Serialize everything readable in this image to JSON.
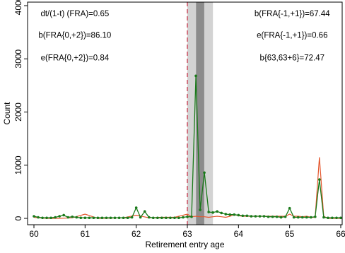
{
  "chart_data": {
    "type": "line",
    "xlabel": "Retirement entry age",
    "ylabel": "Count",
    "xlim": [
      60,
      66
    ],
    "ylim": [
      -100,
      4000
    ],
    "xticks": [
      60,
      61,
      62,
      63,
      64,
      65,
      66
    ],
    "yticks": [
      0,
      1000,
      2000,
      3000,
      4000
    ],
    "grid": false,
    "reference_line": {
      "x": 63,
      "color": "#c8384e",
      "style": "dashed"
    },
    "shaded_bands": [
      {
        "x0": 63.0,
        "x1": 63.5,
        "color": "#d3d3d3"
      },
      {
        "x0": 63.17,
        "x1": 63.33,
        "color": "#8c8c8c"
      }
    ],
    "annotations": [
      {
        "text": "dt/(1-t) (FRA)=0.65",
        "x": 60.8,
        "y": 3840
      },
      {
        "text": "b(FRA{0,+2})=86.10",
        "x": 60.8,
        "y": 3435
      },
      {
        "text": "e(FRA{0,+2})=0.84",
        "x": 60.8,
        "y": 3010
      },
      {
        "text": "b(FRA{-1,+1})=67.44",
        "x": 65.05,
        "y": 3840
      },
      {
        "text": "e(FRA{-1,+1})=0.66",
        "x": 65.05,
        "y": 3435
      },
      {
        "text": "b{63,63+6}=72.47",
        "x": 65.05,
        "y": 3010
      }
    ],
    "series": [
      {
        "color": "#e4572e",
        "x": [
          60.0,
          60.25,
          60.5,
          60.75,
          61.0,
          61.25,
          61.5,
          61.75,
          62.0,
          62.25,
          62.5,
          62.75,
          63.0,
          63.083,
          63.167,
          63.25,
          63.333,
          63.417,
          63.5,
          63.583,
          63.667,
          63.75,
          63.833,
          63.917,
          64.0,
          64.083,
          64.167,
          64.25,
          64.333,
          64.417,
          64.5,
          64.583,
          64.667,
          64.75,
          64.833,
          64.917,
          65.0,
          65.083,
          65.167,
          65.25,
          65.333,
          65.417,
          65.5,
          65.583,
          65.667,
          65.75,
          65.833,
          65.917,
          66.0
        ],
        "values": [
          20,
          0,
          0,
          10,
          80,
          0,
          5,
          10,
          60,
          10,
          20,
          20,
          80,
          30,
          40,
          30,
          30,
          20,
          30,
          40,
          30,
          20,
          40,
          70,
          50,
          40,
          40,
          40,
          40,
          40,
          40,
          40,
          40,
          40,
          40,
          40,
          80,
          40,
          40,
          30,
          40,
          20,
          20,
          1150,
          40,
          0,
          0,
          0,
          0
        ]
      },
      {
        "color": "#1a7a1a",
        "x": [
          60.0,
          60.083,
          60.167,
          60.25,
          60.333,
          60.417,
          60.5,
          60.583,
          60.667,
          60.75,
          60.833,
          60.917,
          61.0,
          61.083,
          61.167,
          61.25,
          61.333,
          61.417,
          61.5,
          61.583,
          61.667,
          61.75,
          61.833,
          61.917,
          62.0,
          62.083,
          62.167,
          62.25,
          62.333,
          62.417,
          62.5,
          62.583,
          62.667,
          62.75,
          62.833,
          62.917,
          63.0,
          63.083,
          63.167,
          63.25,
          63.333,
          63.417,
          63.5,
          63.583,
          63.667,
          63.75,
          63.833,
          63.917,
          64.0,
          64.083,
          64.167,
          64.25,
          64.333,
          64.417,
          64.5,
          64.583,
          64.667,
          64.75,
          64.833,
          64.917,
          65.0,
          65.083,
          65.167,
          65.25,
          65.333,
          65.417,
          65.5,
          65.583,
          65.667,
          65.75,
          65.833,
          65.917,
          66.0
        ],
        "values": [
          40,
          20,
          10,
          10,
          10,
          20,
          40,
          60,
          20,
          30,
          20,
          10,
          10,
          10,
          10,
          10,
          10,
          10,
          10,
          10,
          10,
          10,
          10,
          20,
          200,
          20,
          130,
          20,
          10,
          10,
          10,
          10,
          10,
          10,
          10,
          20,
          30,
          30,
          2680,
          160,
          860,
          120,
          110,
          130,
          100,
          80,
          70,
          70,
          60,
          50,
          50,
          40,
          40,
          40,
          40,
          30,
          30,
          30,
          20,
          30,
          190,
          20,
          20,
          20,
          20,
          20,
          30,
          730,
          20,
          10,
          10,
          10,
          10
        ]
      }
    ]
  }
}
